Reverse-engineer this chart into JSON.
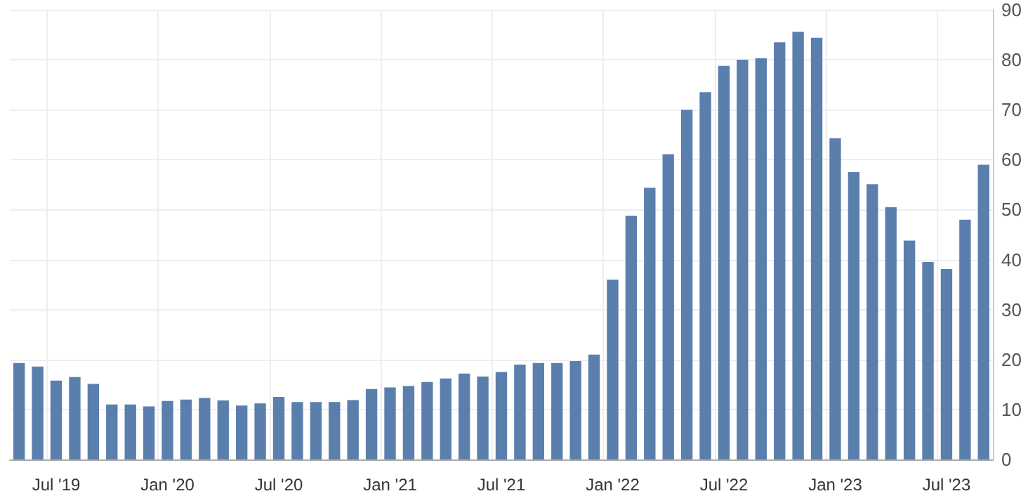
{
  "chart_data": {
    "type": "bar",
    "categories": [
      null,
      null,
      "Jul '19",
      null,
      null,
      null,
      null,
      null,
      "Jan '20",
      null,
      null,
      null,
      null,
      null,
      "Jul '20",
      null,
      null,
      null,
      null,
      null,
      "Jan '21",
      null,
      null,
      null,
      null,
      null,
      "Jul '21",
      null,
      null,
      null,
      null,
      null,
      "Jan '22",
      null,
      null,
      null,
      null,
      null,
      "Jul '22",
      null,
      null,
      null,
      null,
      null,
      "Jan '23",
      null,
      null,
      null,
      null,
      null,
      "Jul '23",
      null,
      null
    ],
    "values": [
      19.3,
      18.6,
      15.8,
      16.5,
      15.1,
      11,
      11,
      10.6,
      11.7,
      12.0,
      12.3,
      11.8,
      10.8,
      11.2,
      12.5,
      11.5,
      11.5,
      11.5,
      11.9,
      14.1,
      14.4,
      14.7,
      15.5,
      16.2,
      17.2,
      16.6,
      17.5,
      19.0,
      19.3,
      19.3,
      19.7,
      21.0,
      36.0,
      48.8,
      54.4,
      61.1,
      70.0,
      73.5,
      78.8,
      80.0,
      80.3,
      83.5,
      85.6,
      84.4,
      64.3,
      57.5,
      55.1,
      50.5,
      43.8,
      39.5,
      38.1,
      48.0,
      59.0
    ],
    "color": "#5b7fad",
    "ylim": [
      0,
      90
    ],
    "yticks": [
      0,
      10,
      20,
      30,
      40,
      50,
      60,
      70,
      80,
      90
    ],
    "grid": true
  }
}
